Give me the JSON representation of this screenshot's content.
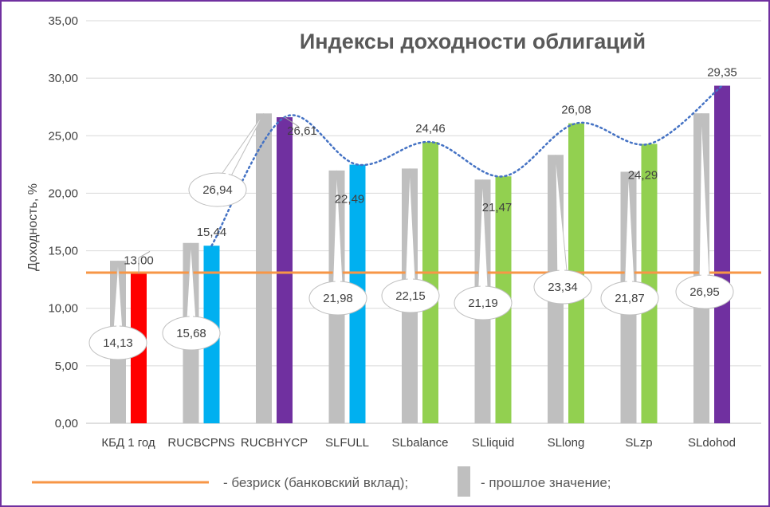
{
  "chart_data": {
    "type": "bar",
    "title": "Индексы доходности облигаций",
    "xlabel": "",
    "ylabel": "Доходность, %",
    "ylim": [
      0,
      35
    ],
    "yticks": [
      "0,00",
      "5,00",
      "10,00",
      "15,00",
      "20,00",
      "25,00",
      "30,00",
      "35,00"
    ],
    "grid": true,
    "categories": [
      "КБД 1 год",
      "RUCBCPNS",
      "RUCBHYCP",
      "SLFULL",
      "SLbalance",
      "SLliquid",
      "SLlong",
      "SLzp",
      "SLdohod"
    ],
    "series": [
      {
        "name": "прошлое значение",
        "color": "#bfbfbf",
        "values": [
          14.13,
          15.68,
          26.94,
          21.98,
          22.15,
          21.19,
          23.34,
          21.87,
          26.95
        ],
        "labels": [
          "14,13",
          "15,68",
          "26,94",
          "21,98",
          "22,15",
          "21,19",
          "23,34",
          "21,87",
          "26,95"
        ]
      },
      {
        "name": "",
        "values": [
          13.0,
          15.44,
          26.61,
          22.49,
          24.46,
          21.47,
          26.08,
          24.29,
          29.35
        ],
        "labels": [
          "13,00",
          "15,44",
          "26,61",
          "22,49",
          "24,46",
          "21,47",
          "26,08",
          "24,29",
          "29,35"
        ],
        "colors": [
          "#ff0000",
          "#00b0f0",
          "#7030a0",
          "#00b0f0",
          "#92d050",
          "#92d050",
          "#92d050",
          "#92d050",
          "#7030a0"
        ]
      }
    ],
    "reference_line": {
      "name": "безриск (банковский вклад)",
      "value": 13.1,
      "color": "#f79646"
    },
    "trendline": {
      "color": "#4472c4",
      "style": "dotted"
    }
  },
  "legend": {
    "risk_free": "- безриск (банковский вклад);",
    "previous": "- прошлое значение;"
  },
  "colors": {
    "frame": "#7030a0",
    "grid": "#d9d9d9",
    "gray_bar": "#bfbfbf",
    "orange_line": "#f79646",
    "trend": "#4472c4"
  }
}
